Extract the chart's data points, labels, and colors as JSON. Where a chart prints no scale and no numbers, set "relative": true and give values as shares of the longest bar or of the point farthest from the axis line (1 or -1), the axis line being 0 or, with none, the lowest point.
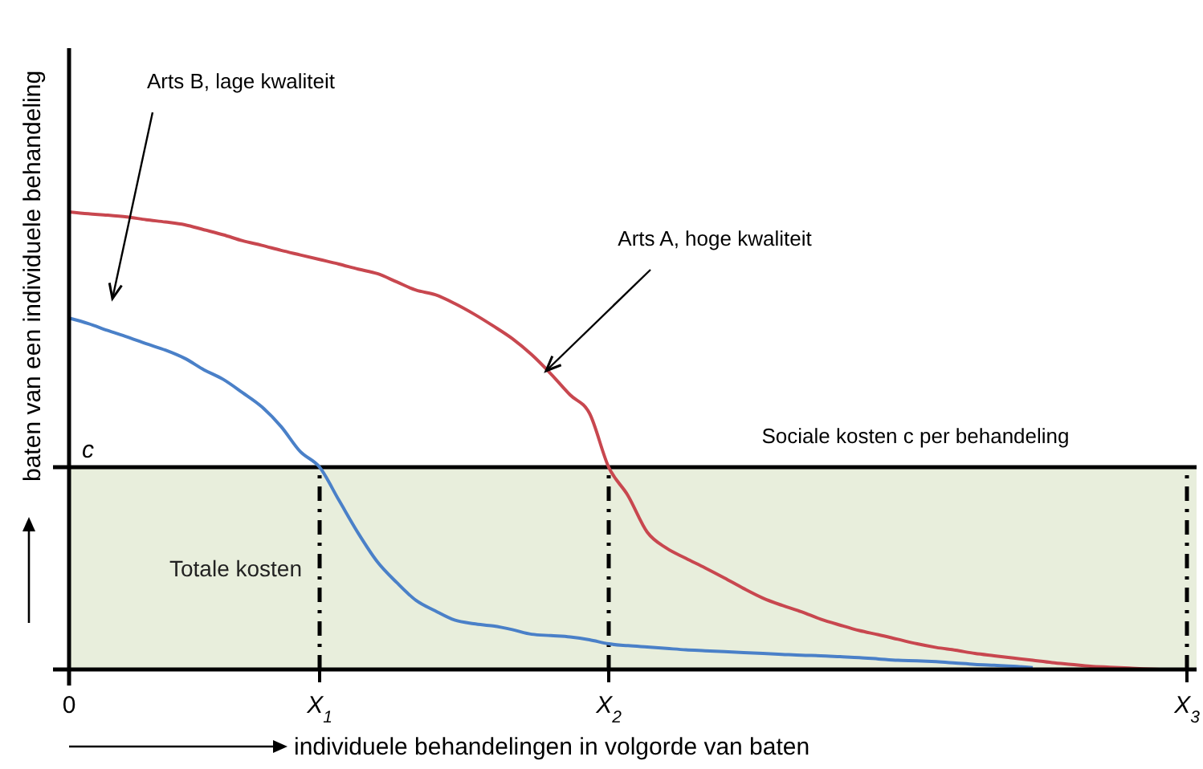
{
  "chart_data": {
    "type": "line",
    "relative": true,
    "xlabel": "individuele behandelingen in volgorde van baten",
    "ylabel": "baten van een individuele behandeling",
    "categories": [
      "0",
      null,
      null,
      null,
      null,
      null,
      null,
      null,
      null,
      null,
      null,
      null,
      null,
      "X$_{1}$",
      null,
      null,
      null,
      null,
      null,
      null,
      null,
      null,
      null,
      null,
      null,
      null,
      null,
      null,
      "X$_{2}$",
      null,
      null,
      null,
      null,
      null,
      null,
      null,
      null,
      null,
      null,
      null,
      null,
      null,
      null,
      null,
      null,
      null,
      null,
      null,
      null,
      null,
      null,
      null,
      null,
      null,
      null,
      null,
      null,
      null,
      "X$_{3}$"
    ],
    "series": [
      {
        "color": "#c8474f",
        "values": [
          1,
          0.996,
          0.993,
          0.989,
          0.983,
          0.978,
          0.972,
          0.961,
          0.95,
          0.937,
          0.927,
          0.916,
          0.906,
          0.896,
          0.886,
          0.875,
          0.865,
          0.847,
          0.829,
          0.819,
          0.8,
          0.777,
          0.751,
          0.723,
          0.688,
          0.646,
          0.6,
          0.56,
          0.442,
          0.38,
          0.3,
          0.265,
          0.243,
          0.222,
          0.2,
          0.177,
          0.156,
          0.14,
          0.126,
          0.11,
          0.097,
          0.085,
          0.076,
          0.066,
          0.056,
          0.048,
          0.042,
          0.035,
          0.03,
          0.025,
          0.02,
          0.015,
          0.011,
          0.007,
          0.005,
          0.003,
          0.001,
          0,
          0
        ]
      },
      {
        "color": "#4a80c8",
        "values": [
          0.768,
          0.756,
          0.741,
          0.727,
          0.712,
          0.698,
          0.68,
          0.655,
          0.634,
          0.605,
          0.574,
          0.531,
          0.476,
          0.442,
          0.37,
          0.298,
          0.235,
          0.19,
          0.151,
          0.128,
          0.108,
          0.1,
          0.095,
          0.087,
          0.077,
          0.074,
          0.071,
          0.065,
          0.056,
          0.052,
          0.049,
          0.046,
          0.043,
          0.041,
          0.039,
          0.037,
          0.035,
          0.033,
          0.031,
          0.03,
          0.028,
          0.026,
          0.023,
          0.02,
          0.019,
          0.017,
          0.014,
          0.011,
          0.009,
          0.007,
          0.004,
          null,
          null,
          null,
          null,
          null,
          null,
          null,
          null
        ]
      }
    ],
    "ref_lines": [
      {
        "axis": "y",
        "value": 0.442,
        "label": "c",
        "color": "#000000",
        "line_style": "solid"
      },
      {
        "axis": "x",
        "value": "X$_{1}$",
        "color": "#000000",
        "line_style": "dashed"
      },
      {
        "axis": "x",
        "value": "X$_{2}$",
        "color": "#000000",
        "line_style": "dashed"
      },
      {
        "axis": "x",
        "value": "X$_{3}$",
        "color": "#000000",
        "line_style": "dashed"
      }
    ],
    "bands": [
      {
        "axis": "y",
        "from": 0,
        "to": 0.442,
        "label": "Totale kosten",
        "color": "#e8eedc"
      }
    ],
    "annotations": [
      "Arts B, lage kwaliteit",
      "Arts A, hoge kwaliteit",
      "Sociale kosten c per behandeling"
    ],
    "line_style": "solid"
  }
}
